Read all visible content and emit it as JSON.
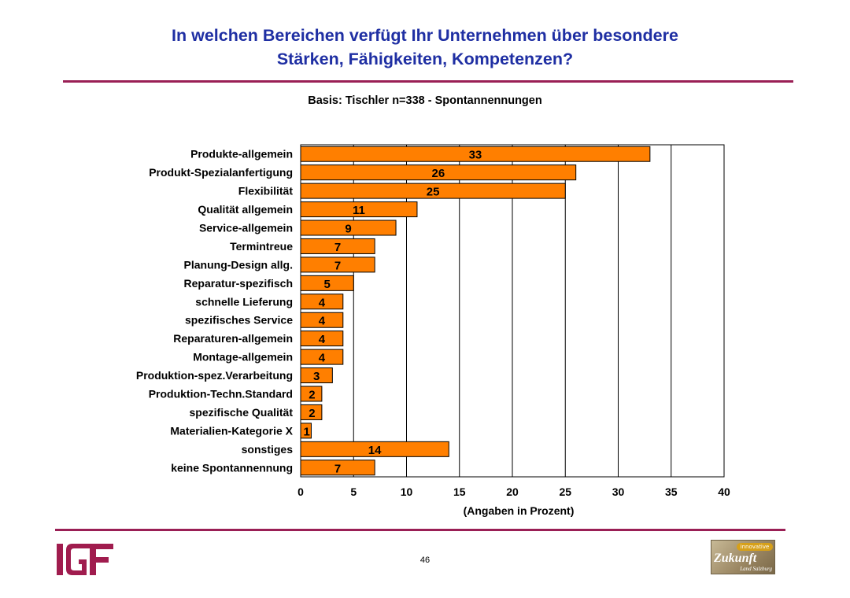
{
  "header": {
    "title_line1": "In welchen Bereichen verfügt Ihr Unternehmen über besondere",
    "title_line2": "Stärken, Fähigkeiten, Kompetenzen?",
    "subtitle": "Basis: Tischler n=338 - Spontannennungen"
  },
  "chart_data": {
    "type": "bar",
    "orientation": "horizontal",
    "categories": [
      "Produkte-allgemein",
      "Produkt-Spezialanfertigung",
      "Flexibilität",
      "Qualität allgemein",
      "Service-allgemein",
      "Termintreue",
      "Planung-Design allg.",
      "Reparatur-spezifisch",
      "schnelle Lieferung",
      "spezifisches Service",
      "Reparaturen-allgemein",
      "Montage-allgemein",
      "Produktion-spez.Verarbeitung",
      "Produktion-Techn.Standard",
      "spezifische Qualität",
      "Materialien-Kategorie X",
      "sonstiges",
      "keine Spontannennung"
    ],
    "values": [
      33,
      26,
      25,
      11,
      9,
      7,
      7,
      5,
      4,
      4,
      4,
      4,
      3,
      2,
      2,
      1,
      14,
      7
    ],
    "xlabel": "(Angaben in Prozent)",
    "xlim": [
      0,
      40
    ],
    "xticks": [
      0,
      5,
      10,
      15,
      20,
      25,
      30,
      35,
      40
    ],
    "grid": "vertical",
    "bar_color": "#ff7f00"
  },
  "footer": {
    "page_number": "46",
    "logo_left_text": "IGF",
    "logo_right_badge": "innovative",
    "logo_right_word": "Zukunft",
    "logo_right_region": "Land Salzburg"
  }
}
